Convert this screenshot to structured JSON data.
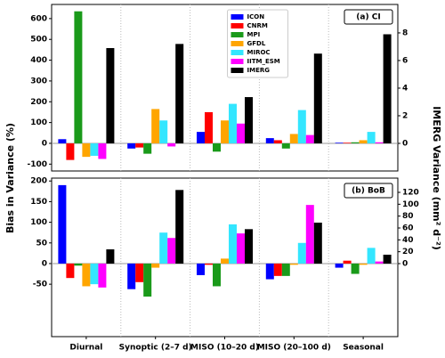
{
  "y_label": "Bias in Variance (%)",
  "y2_label": "IMERG Variance (mm² d⁻²)",
  "chart_data": [
    {
      "type": "bar",
      "annotation": "(a) CI",
      "legend": "upper center",
      "grid": false,
      "ylim": [
        -133,
        668
      ],
      "yticks": [
        -100,
        0,
        100,
        200,
        300,
        400,
        500,
        600
      ],
      "y2lim": [
        -2,
        10.06
      ],
      "y2ticks": [
        0,
        2,
        4,
        6,
        8
      ],
      "series": [
        {
          "name": "ICON",
          "color": "#0000ff",
          "values": [
            20,
            -25,
            55,
            25,
            3
          ]
        },
        {
          "name": "CNRM",
          "color": "#ff0000",
          "values": [
            -80,
            -20,
            150,
            15,
            3
          ]
        },
        {
          "name": "MPI",
          "color": "#1a9a1a",
          "values": [
            635,
            -50,
            -40,
            -25,
            5
          ]
        },
        {
          "name": "GFDL",
          "color": "#ffa500",
          "values": [
            -65,
            165,
            110,
            45,
            15
          ]
        },
        {
          "name": "MIROC",
          "color": "#33e6ff",
          "values": [
            -60,
            110,
            190,
            160,
            55
          ]
        },
        {
          "name": "IITM_ESM",
          "color": "#ff00ff",
          "values": [
            -75,
            -15,
            95,
            40,
            5
          ]
        },
        {
          "name": "IMERG",
          "color": "#000000",
          "axis": "y2",
          "values": [
            6.9,
            7.2,
            3.35,
            6.5,
            7.9
          ]
        }
      ]
    },
    {
      "type": "bar",
      "annotation": "(b) BoB",
      "grid": false,
      "categories": [
        "Diurnal",
        "Synoptic (2–7 d)",
        "MISO (10–20 d)",
        "MISO (20–100 d)",
        "Seasonal"
      ],
      "ylim": [
        -177,
        207
      ],
      "yticks": [
        -50,
        0,
        50,
        100,
        150,
        200
      ],
      "y2lim": [
        -123,
        144
      ],
      "y2ticks": [
        0,
        20,
        40,
        60,
        80,
        100,
        120
      ],
      "series": [
        {
          "color": "#0000ff",
          "values": [
            190,
            -62,
            -28,
            -38,
            -10
          ]
        },
        {
          "color": "#ff0000",
          "values": [
            -35,
            -45,
            -3,
            -30,
            7
          ]
        },
        {
          "color": "#1a9a1a",
          "values": [
            -5,
            -80,
            -55,
            -30,
            -25
          ]
        },
        {
          "color": "#ffa500",
          "values": [
            -55,
            -10,
            12,
            -3,
            -3
          ]
        },
        {
          "color": "#33e6ff",
          "values": [
            -50,
            75,
            95,
            50,
            38
          ]
        },
        {
          "color": "#ff00ff",
          "values": [
            -58,
            62,
            73,
            142,
            5
          ]
        },
        {
          "color": "#000000",
          "axis": "y2",
          "values": [
            24,
            124,
            58,
            69,
            15
          ]
        }
      ]
    }
  ]
}
